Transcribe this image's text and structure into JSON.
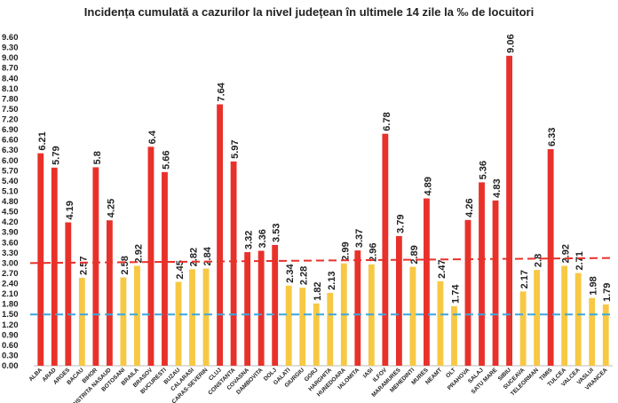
{
  "chart_data": {
    "type": "bar",
    "title": "Incidența cumulată a cazurilor la nivel județean în ultimele 14 zile la ‰ de locuitori",
    "xlabel": "",
    "ylabel": "",
    "ylim": [
      0,
      9.6
    ],
    "ytick_step": 0.3,
    "grid": false,
    "legend": "none",
    "categories": [
      "ALBA",
      "ARAD",
      "ARGES",
      "BACAU",
      "BIHOR",
      "BISTRITA NASAUD",
      "BOTOSANI",
      "BRAILA",
      "BRASOV",
      "BUCURESTI",
      "BUZAU",
      "CALARASI",
      "CARAS-SEVERIN",
      "CLUJ",
      "CONSTANTA",
      "COVASNA",
      "DAMBOVITA",
      "DOLJ",
      "GALATI",
      "GIURGIU",
      "GORJ",
      "HARGHITA",
      "HUNEDOARA",
      "IALOMITA",
      "IASI",
      "ILFOV",
      "MARAMURES",
      "MEHEDINTI",
      "MURES",
      "NEAMT",
      "OLT",
      "PRAHOVA",
      "SALAJ",
      "SATU MARE",
      "SIBIU",
      "SUCEAVA",
      "TELEORMAN",
      "TIMIS",
      "TULCEA",
      "VALCEA",
      "VASLUI",
      "VRANCEA"
    ],
    "values": [
      6.21,
      5.79,
      4.19,
      2.57,
      5.8,
      4.25,
      2.58,
      2.92,
      6.4,
      5.66,
      2.45,
      2.82,
      2.84,
      7.64,
      5.97,
      3.32,
      3.36,
      3.53,
      2.34,
      2.28,
      1.82,
      2.13,
      2.99,
      3.37,
      2.96,
      6.78,
      3.79,
      2.89,
      4.89,
      2.47,
      1.74,
      4.26,
      5.36,
      4.83,
      9.06,
      2.17,
      2.8,
      6.33,
      2.92,
      2.71,
      1.98,
      1.79
    ],
    "colors": {
      "high": "#e8312a",
      "low": "#f7c843",
      "red_line": "#e8312a",
      "blue_line": "#3aa7e0"
    },
    "reference_lines": {
      "red": [
        3.0,
        3.15
      ],
      "blue": [
        1.5,
        1.5
      ]
    }
  }
}
